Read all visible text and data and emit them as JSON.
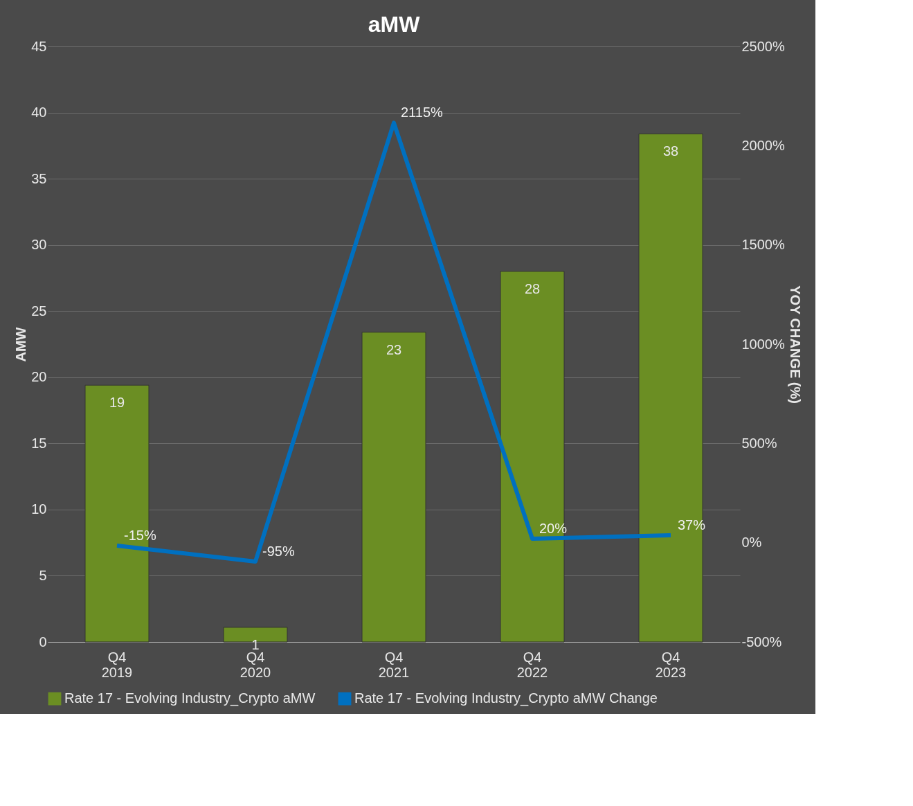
{
  "chart_data": {
    "type": "bar",
    "title": "aMW",
    "ylabel": "AMW",
    "y2label": "YOY CHANGE (%)",
    "categories": [
      "Q4 2019",
      "Q4 2020",
      "Q4 2021",
      "Q4 2022",
      "Q4 2023"
    ],
    "series": [
      {
        "name": "Rate 17 - Evolving Industry_Crypto aMW",
        "color": "#6b8e23",
        "values": [
          19.4,
          1.1,
          23.4,
          28.0,
          38.4
        ],
        "value_labels": [
          "19",
          "1",
          "23",
          "28",
          "38"
        ]
      },
      {
        "name": "Rate 17 - Evolving Industry_Crypto aMW Change",
        "type": "line",
        "axis": "y2",
        "color": "#0070c0",
        "values": [
          -15,
          -95,
          2115,
          20,
          37
        ],
        "value_labels": [
          "-15%",
          "-95%",
          "2115%",
          "20%",
          "37%"
        ]
      }
    ],
    "ylim": [
      0,
      45
    ],
    "yticks": [
      0,
      5,
      10,
      15,
      20,
      25,
      30,
      35,
      40,
      45
    ],
    "y2lim": [
      -500,
      2500
    ],
    "y2ticks": [
      {
        "value": -500,
        "label": "-500%"
      },
      {
        "value": 0,
        "label": "0%"
      },
      {
        "value": 500,
        "label": "500%"
      },
      {
        "value": 1000,
        "label": "1000%"
      },
      {
        "value": 1500,
        "label": "1500%"
      },
      {
        "value": 2000,
        "label": "2000%"
      },
      {
        "value": 2500,
        "label": "2500%"
      }
    ],
    "grid": "y",
    "legend": "bottom"
  }
}
